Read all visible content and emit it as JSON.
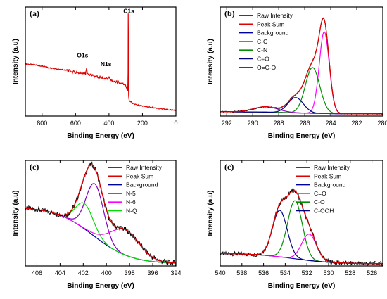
{
  "chart_data": [
    {
      "panel": "(a)",
      "type": "line",
      "xlabel": "Binding Energy (eV)",
      "ylabel": "Intensity (a.u)",
      "xlim": [
        900,
        0
      ],
      "xticks": [
        800,
        600,
        400,
        200,
        0
      ],
      "ylim": [
        0,
        100
      ],
      "annotations": [
        {
          "text": "O1s",
          "x": 533,
          "y": 52
        },
        {
          "text": "N1s",
          "x": 400,
          "y": 44
        },
        {
          "text": "C1s",
          "x": 285,
          "y": 92
        }
      ],
      "series": [
        {
          "color": "#e00000",
          "x": [
            900,
            850,
            800,
            750,
            700,
            650,
            600,
            560,
            540,
            533,
            530,
            500,
            450,
            410,
            400,
            390,
            350,
            310,
            300,
            292,
            288,
            286,
            285,
            284,
            283,
            281,
            278,
            270,
            250,
            200,
            150,
            100,
            50,
            0
          ],
          "y": [
            48,
            47,
            46,
            44,
            43,
            42,
            40,
            39,
            39,
            44,
            39,
            37,
            35,
            34,
            35,
            33,
            31,
            29,
            28,
            24,
            23,
            40,
            94,
            60,
            20,
            16,
            14,
            13,
            11,
            9,
            8,
            7,
            6,
            5
          ]
        }
      ]
    },
    {
      "panel": "(b)",
      "type": "line",
      "xlabel": "Binding Energy (eV)",
      "ylabel": "Intensity (a.u)",
      "xlim": [
        292.5,
        280
      ],
      "xticks": [
        292,
        290,
        288,
        286,
        284,
        282,
        280
      ],
      "ylim": [
        0,
        100
      ],
      "legend": {
        "position": "top-left",
        "entries": [
          {
            "label": "Raw Intensity",
            "color": "#000000"
          },
          {
            "label": "Peak Sum",
            "color": "#e00000"
          },
          {
            "label": "Background",
            "color": "#0000a0"
          },
          {
            "label": "C-C",
            "color": "#ff00ff"
          },
          {
            "label": "C-N",
            "color": "#009000"
          },
          {
            "label": "C=O",
            "color": "#000080"
          },
          {
            "label": "O=C-O",
            "color": "#9000c0"
          }
        ]
      },
      "baseline": {
        "left": 4,
        "right": 2
      },
      "components": [
        {
          "name": "C-C",
          "center": 284.5,
          "height": 75,
          "fwhm": 0.9,
          "color": "#ff00ff"
        },
        {
          "name": "C-N",
          "center": 285.4,
          "height": 42,
          "fwhm": 1.3,
          "color": "#009000"
        },
        {
          "name": "C=O",
          "center": 286.7,
          "height": 14,
          "fwhm": 1.4,
          "color": "#000080"
        },
        {
          "name": "O=C-O",
          "center": 289.0,
          "height": 5,
          "fwhm": 2.2,
          "color": "#9000c0"
        }
      ],
      "noise": 0.6
    },
    {
      "panel": "(c)",
      "type": "line",
      "xlabel": "Binding Energy (eV)",
      "ylabel": "Intensity (a.u)",
      "xlim": [
        407,
        394
      ],
      "xticks": [
        406,
        404,
        402,
        400,
        398,
        396,
        394
      ],
      "ylim": [
        0,
        100
      ],
      "legend": {
        "position": "top-right",
        "entries": [
          {
            "label": "Raw Intensity",
            "color": "#000000"
          },
          {
            "label": "Peak Sum",
            "color": "#e00000"
          },
          {
            "label": "Background",
            "color": "#0000a0"
          },
          {
            "label": "N-5",
            "color": "#8000c0"
          },
          {
            "label": "N-6",
            "color": "#ff00ff"
          },
          {
            "label": "N-Q",
            "color": "#00dd00"
          }
        ]
      },
      "baseline": {
        "left": 56,
        "right": 2
      },
      "components": [
        {
          "name": "N-5",
          "center": 401.0,
          "height": 50,
          "fwhm": 1.8,
          "color": "#8000c0"
        },
        {
          "name": "N-6",
          "center": 398.4,
          "height": 24,
          "fwhm": 3.0,
          "color": "#ff00ff"
        },
        {
          "name": "N-Q",
          "center": 401.9,
          "height": 24,
          "fwhm": 1.8,
          "color": "#00dd00"
        }
      ],
      "noise": 2.5
    },
    {
      "panel": "(c)",
      "type": "line",
      "xlabel": "Binding Energy (eV)",
      "ylabel": "Intensity (a.u)",
      "xlim": [
        540,
        525
      ],
      "xticks": [
        540,
        538,
        536,
        534,
        532,
        530,
        528,
        526
      ],
      "ylim": [
        0,
        100
      ],
      "legend": {
        "position": "top-right",
        "entries": [
          {
            "label": "Raw Intensity",
            "color": "#000000"
          },
          {
            "label": "Peak Sum",
            "color": "#e00000"
          },
          {
            "label": "Background",
            "color": "#0000a0"
          },
          {
            "label": "C=O",
            "color": "#ff00ff"
          },
          {
            "label": "C-O",
            "color": "#009000"
          },
          {
            "label": "C-OOH",
            "color": "#000080"
          }
        ]
      },
      "baseline": {
        "left": 12,
        "right": 2
      },
      "components": [
        {
          "name": "C=O",
          "center": 531.8,
          "height": 25,
          "fwhm": 1.6,
          "color": "#ff00ff"
        },
        {
          "name": "C-O",
          "center": 533.1,
          "height": 55,
          "fwhm": 1.6,
          "color": "#009000"
        },
        {
          "name": "C-OOH",
          "center": 534.5,
          "height": 44,
          "fwhm": 1.6,
          "color": "#000080"
        }
      ],
      "noise": 2.0
    }
  ]
}
